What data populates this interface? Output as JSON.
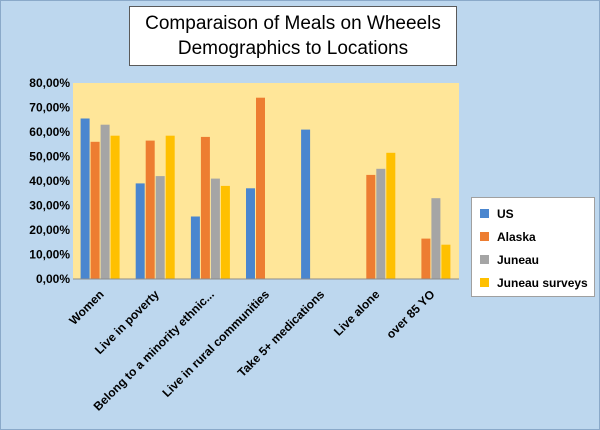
{
  "chart_data": {
    "type": "bar",
    "title_lines": [
      "Comparaison of Meals on Wheeels",
      "Demographics to Locations"
    ],
    "categories": [
      "Women",
      "Live in poverty",
      "Belong to a minority ethnic...",
      "Live in rural communities",
      "Take 5+ medications",
      "Live alone",
      "over 85 YO"
    ],
    "series": [
      {
        "name": "US",
        "color": "#4a86cf",
        "values": [
          65.5,
          39,
          25.5,
          37,
          61,
          null,
          null
        ]
      },
      {
        "name": "Alaska",
        "color": "#ed7d31",
        "values": [
          56,
          56.5,
          58,
          74,
          null,
          42.5,
          16.5
        ]
      },
      {
        "name": "Juneau",
        "color": "#a5a5a5",
        "values": [
          63,
          42,
          41,
          null,
          null,
          45,
          33
        ]
      },
      {
        "name": "Juneau surveys",
        "color": "#ffc000",
        "values": [
          58.5,
          58.5,
          38,
          null,
          null,
          51.5,
          14
        ]
      }
    ],
    "y_ticks": [
      "0,00%",
      "10,00%",
      "20,00%",
      "30,00%",
      "40,00%",
      "50,00%",
      "60,00%",
      "70,00%",
      "80,00%"
    ],
    "ylim": [
      0,
      80
    ],
    "grid": false,
    "legend_position": "right"
  }
}
